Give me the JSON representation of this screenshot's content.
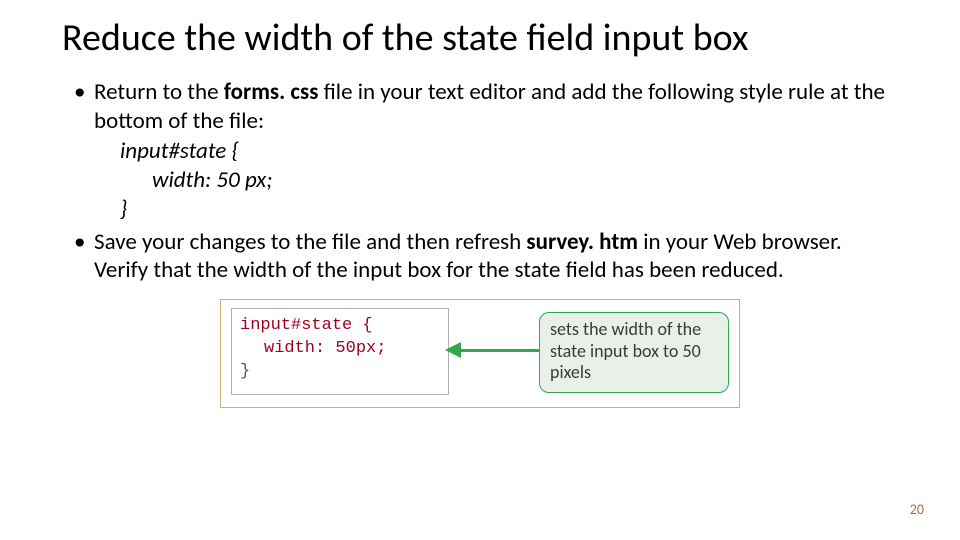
{
  "title": "Reduce the width of the state field input box",
  "bullets": {
    "b1_pre": "Return to the ",
    "b1_bold": "forms. css",
    "b1_post": " file in your text editor and add the following style rule at the bottom of the file:",
    "code_l1": "input#state {",
    "code_l2": "width: 50 px;",
    "code_l3": "}",
    "b2_pre": "Save your changes to the file and then refresh ",
    "b2_bold": "survey. htm",
    "b2_post": " in your Web browser. Verify that the width of the input box for the state field has been reduced."
  },
  "figure": {
    "border_color": "#c9b27a",
    "code_border_color": "#b0b0b0",
    "code": {
      "l1": "input#state {",
      "l2": "width: 50px;",
      "l3": "}",
      "selector_color": "#a00020",
      "brace_color": "#555555",
      "prop_color": "#a00020",
      "value_color": "#a00020"
    },
    "callout": {
      "text": "sets the width of the state input box to 50 pixels",
      "border_color": "#2fa84f",
      "bg_color": "#e9f0e9",
      "text_color": "#3a3a3a"
    },
    "arrow_color": "#2fa84f"
  },
  "page_number": "20",
  "page_number_color": "#b06a3a"
}
